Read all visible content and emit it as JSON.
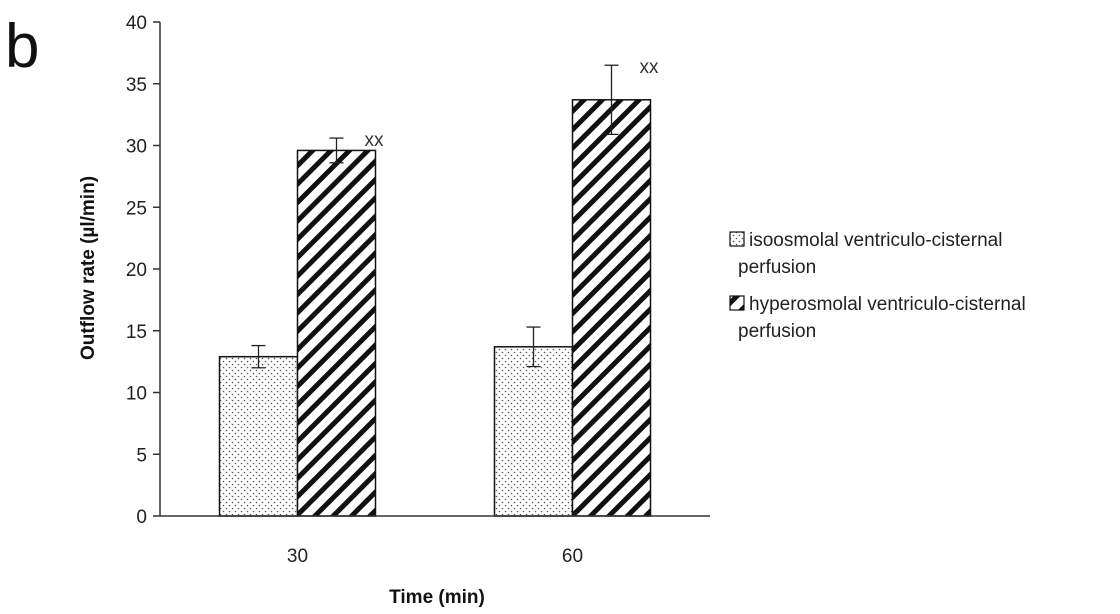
{
  "panel_label": "b",
  "chart_data": {
    "type": "bar",
    "categories": [
      "30",
      "60"
    ],
    "series": [
      {
        "name": "isoosmolal ventriculo-cisternal perfusion",
        "values": [
          12.9,
          13.7
        ],
        "errors": [
          0.9,
          1.6
        ],
        "pattern": "dots",
        "annotations": [
          "",
          ""
        ]
      },
      {
        "name": "hyperosmolal ventriculo-cisternal perfusion",
        "values": [
          29.6,
          33.7
        ],
        "errors": [
          1.0,
          2.8
        ],
        "pattern": "diagonal-hatch",
        "annotations": [
          "xx",
          "xx"
        ]
      }
    ],
    "xlabel": "Time (min)",
    "ylabel": "Outflow rate (µl/min)",
    "ylim": [
      0,
      40
    ],
    "yticks": [
      "0",
      "5",
      "10",
      "15",
      "20",
      "25",
      "30",
      "35",
      "40"
    ],
    "grid": false,
    "legend": {
      "position": "right",
      "entries": [
        [
          "isoosmolal ventriculo-cisternal",
          "perfusion"
        ],
        [
          "hyperosmolal ventriculo-cisternal",
          "perfusion"
        ]
      ]
    }
  }
}
